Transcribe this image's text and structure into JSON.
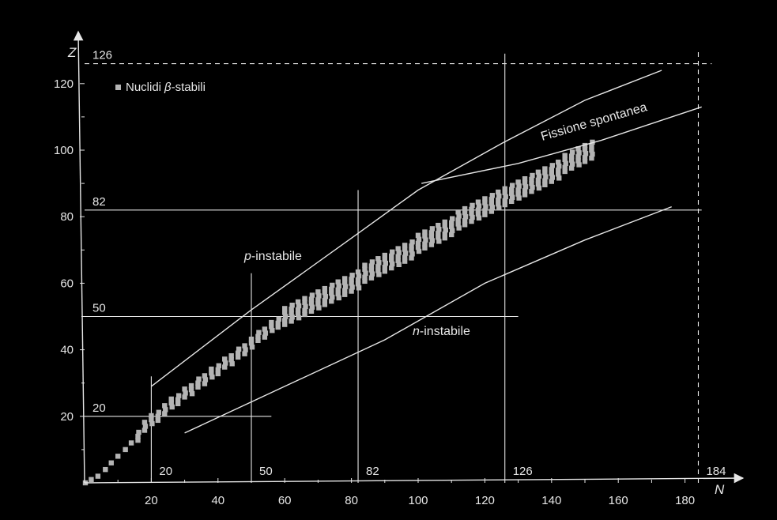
{
  "colors": {
    "background": "#000000",
    "ink": "#e6e6e6",
    "nuclide": "#b4b4b4"
  },
  "chart_data": {
    "type": "scatter",
    "x_axis": {
      "label": "N",
      "range": [
        0,
        190
      ],
      "ticks": [
        "20",
        "40",
        "60",
        "80",
        "100",
        "120",
        "140",
        "160",
        "180"
      ]
    },
    "y_axis": {
      "label": "Z",
      "range": [
        0,
        130
      ],
      "ticks": [
        "20",
        "40",
        "60",
        "80",
        "100",
        "120"
      ]
    },
    "legend": {
      "marker": "square",
      "label": "Nuclidi",
      "symbol": "β",
      "label_suffix": "-stabili",
      "placement": "top-left"
    },
    "magic_numbers": {
      "N": [
        {
          "value": 20,
          "label": "20",
          "z_extent": [
            0,
            32
          ]
        },
        {
          "value": 50,
          "label": "50",
          "z_extent": [
            0,
            63
          ]
        },
        {
          "value": 82,
          "label": "82",
          "z_extent": [
            0,
            88
          ]
        },
        {
          "value": 126,
          "label": "126",
          "z_extent": [
            0,
            129
          ]
        },
        {
          "value": 184,
          "label": "184",
          "z_extent": [
            0,
            130
          ],
          "dashed": true
        }
      ],
      "Z": [
        {
          "value": 20,
          "label": "20",
          "n_extent": [
            0,
            56
          ]
        },
        {
          "value": 50,
          "label": "50",
          "n_extent": [
            0,
            130
          ]
        },
        {
          "value": 82,
          "label": "82",
          "n_extent": [
            0,
            185
          ]
        },
        {
          "value": 126,
          "label": "126",
          "n_extent": [
            0,
            188
          ],
          "dashed": true
        }
      ]
    },
    "curves": [
      {
        "name": "p-instabile",
        "label_prefix": "p",
        "label_suffix": "-instabile",
        "points": [
          [
            20,
            29
          ],
          [
            50,
            52
          ],
          [
            82,
            75
          ],
          [
            100,
            88
          ],
          [
            125,
            102
          ],
          [
            150,
            115
          ],
          [
            173,
            124
          ]
        ]
      },
      {
        "name": "n-instabile",
        "label_prefix": "n",
        "label_suffix": "-instabile",
        "points": [
          [
            30,
            15
          ],
          [
            60,
            29
          ],
          [
            90,
            43
          ],
          [
            120,
            60
          ],
          [
            150,
            73
          ],
          [
            176,
            83
          ]
        ]
      },
      {
        "name": "Fissione spontanea",
        "label": "Fissione spontanea",
        "points": [
          [
            101,
            90
          ],
          [
            130,
            96
          ],
          [
            155,
            103
          ],
          [
            185,
            113
          ]
        ]
      }
    ],
    "stable_band": [
      [
        0,
        0
      ],
      [
        2,
        1
      ],
      [
        4,
        2
      ],
      [
        6,
        4
      ],
      [
        8,
        6
      ],
      [
        10,
        8
      ],
      [
        12,
        10
      ],
      [
        14,
        12
      ],
      [
        16,
        14
      ],
      [
        18,
        17
      ],
      [
        20,
        19
      ],
      [
        22,
        20
      ],
      [
        24,
        22
      ],
      [
        26,
        24
      ],
      [
        28,
        25
      ],
      [
        30,
        27
      ],
      [
        32,
        28
      ],
      [
        34,
        30
      ],
      [
        36,
        31
      ],
      [
        38,
        33
      ],
      [
        40,
        34
      ],
      [
        42,
        36
      ],
      [
        44,
        37
      ],
      [
        46,
        39
      ],
      [
        48,
        40
      ],
      [
        50,
        42
      ],
      [
        52,
        44
      ],
      [
        54,
        45
      ],
      [
        56,
        47
      ],
      [
        58,
        48
      ],
      [
        60,
        50
      ],
      [
        62,
        51
      ],
      [
        64,
        52
      ],
      [
        66,
        53
      ],
      [
        68,
        54
      ],
      [
        70,
        55
      ],
      [
        72,
        56
      ],
      [
        74,
        57
      ],
      [
        76,
        58
      ],
      [
        78,
        59
      ],
      [
        80,
        60
      ],
      [
        82,
        61
      ],
      [
        84,
        63
      ],
      [
        86,
        64
      ],
      [
        88,
        65
      ],
      [
        90,
        66
      ],
      [
        92,
        67
      ],
      [
        94,
        68
      ],
      [
        96,
        69
      ],
      [
        98,
        70
      ],
      [
        100,
        72
      ],
      [
        102,
        73
      ],
      [
        104,
        74
      ],
      [
        106,
        75
      ],
      [
        108,
        76
      ],
      [
        110,
        77
      ],
      [
        112,
        79
      ],
      [
        114,
        80
      ],
      [
        116,
        81
      ],
      [
        118,
        82
      ],
      [
        120,
        83
      ],
      [
        122,
        84
      ],
      [
        124,
        85
      ],
      [
        126,
        86
      ],
      [
        128,
        87
      ],
      [
        130,
        88
      ],
      [
        132,
        89
      ],
      [
        134,
        90
      ],
      [
        136,
        91
      ],
      [
        138,
        92
      ],
      [
        140,
        93
      ],
      [
        142,
        94
      ],
      [
        144,
        96
      ],
      [
        146,
        97
      ],
      [
        148,
        98
      ],
      [
        150,
        99
      ],
      [
        152,
        100
      ]
    ],
    "grid": false
  }
}
